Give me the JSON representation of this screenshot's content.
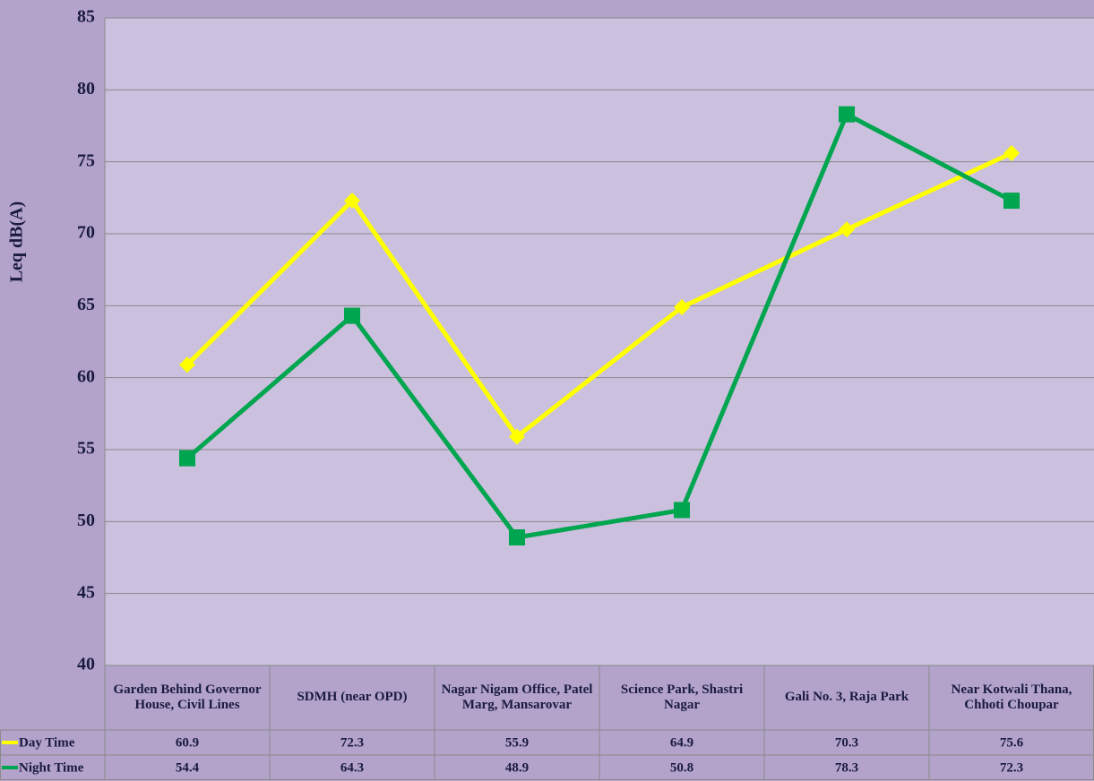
{
  "chart_data": {
    "type": "line",
    "y_label": "Leq dB(A)",
    "categories": [
      "Garden Behind Governor House, Civil Lines",
      "SDMH (near OPD)",
      "Nagar Nigam Office, Patel Marg, Mansarovar",
      "Science Park, Shastri Nagar",
      "Gali No. 3, Raja Park",
      "Near Kotwali Thana, Chhoti Choupar"
    ],
    "series": [
      {
        "name": "Day Time",
        "color": "#ffff00",
        "marker": "diamond",
        "values": [
          60.9,
          72.3,
          55.9,
          64.9,
          70.3,
          75.6
        ]
      },
      {
        "name": "Night Time",
        "color": "#00a550",
        "marker": "square",
        "values": [
          54.4,
          64.3,
          48.9,
          50.8,
          78.3,
          72.3
        ]
      }
    ],
    "ylim": [
      40,
      85
    ],
    "yticks": [
      40,
      45,
      50,
      55,
      60,
      65,
      70,
      75,
      80,
      85
    ],
    "grid": true,
    "data_table": true
  }
}
